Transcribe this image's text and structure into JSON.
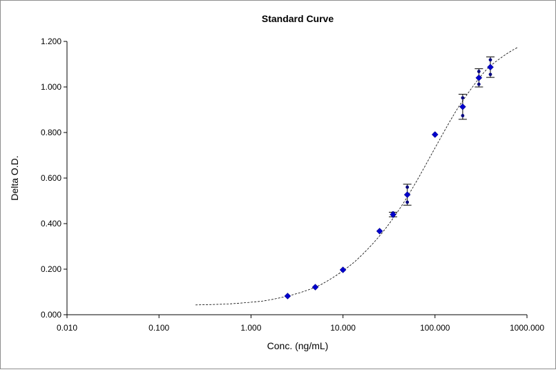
{
  "chart_data": {
    "type": "scatter",
    "title": "Standard Curve",
    "xlabel": "Conc. (ng/mL)",
    "ylabel": "Delta O.D.",
    "x_scale": "log",
    "xlim": [
      0.01,
      1000
    ],
    "ylim": [
      0,
      1.2
    ],
    "x_ticks": [
      "0.010",
      "0.100",
      "1.000",
      "10.000",
      "100.000",
      "1000.000"
    ],
    "x_tick_values": [
      0.01,
      0.1,
      1,
      10,
      100,
      1000
    ],
    "y_ticks": [
      "0.000",
      "0.200",
      "0.400",
      "0.600",
      "0.800",
      "1.000",
      "1.200"
    ],
    "y_tick_values": [
      0,
      0.2,
      0.4,
      0.6,
      0.8,
      1.0,
      1.2
    ],
    "grid": false,
    "legend": "none",
    "colors": {
      "mean_marker": "#0000cc",
      "replicate_marker": "#000080",
      "error_bar": "#000000",
      "fit_line": "#000000"
    },
    "series": [
      {
        "role": "mean",
        "x": [
          2.5,
          5,
          10,
          25,
          35,
          50,
          100,
          200,
          300,
          400
        ],
        "y": [
          0.082,
          0.121,
          0.197,
          0.367,
          0.44,
          0.527,
          0.791,
          0.913,
          1.04,
          1.087
        ],
        "y_err": [
          0.004,
          0.003,
          0.004,
          0.004,
          0.01,
          0.046,
          0.006,
          0.055,
          0.04,
          0.045
        ]
      },
      {
        "role": "replicates",
        "x": [
          2.5,
          2.5,
          5,
          5,
          10,
          10,
          25,
          25,
          35,
          35,
          50,
          50,
          100,
          100,
          200,
          200,
          300,
          300,
          400,
          400
        ],
        "y": [
          0.08,
          0.085,
          0.119,
          0.123,
          0.195,
          0.199,
          0.365,
          0.369,
          0.433,
          0.447,
          0.494,
          0.56,
          0.787,
          0.795,
          0.874,
          0.952,
          1.012,
          1.068,
          1.055,
          1.119
        ]
      },
      {
        "role": "fit",
        "style": "dotted",
        "x": [
          0.25,
          0.4,
          0.6,
          1,
          1.5,
          2.5,
          4,
          6,
          10,
          15,
          25,
          40,
          60,
          100,
          150,
          200,
          300,
          400,
          600,
          800
        ],
        "y": [
          0.043,
          0.045,
          0.048,
          0.055,
          0.063,
          0.082,
          0.106,
          0.136,
          0.193,
          0.251,
          0.346,
          0.457,
          0.571,
          0.732,
          0.859,
          0.939,
          1.037,
          1.092,
          1.145,
          1.175
        ]
      }
    ]
  }
}
